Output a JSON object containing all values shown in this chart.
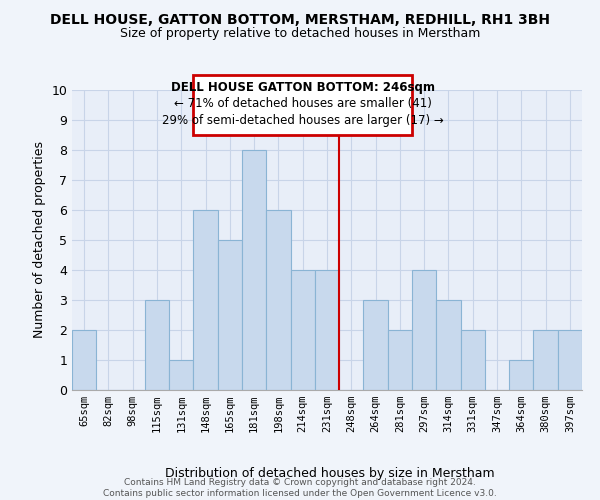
{
  "title": "DELL HOUSE, GATTON BOTTOM, MERSTHAM, REDHILL, RH1 3BH",
  "subtitle": "Size of property relative to detached houses in Merstham",
  "xlabel": "Distribution of detached houses by size in Merstham",
  "ylabel": "Number of detached properties",
  "bin_labels": [
    "65sqm",
    "82sqm",
    "98sqm",
    "115sqm",
    "131sqm",
    "148sqm",
    "165sqm",
    "181sqm",
    "198sqm",
    "214sqm",
    "231sqm",
    "248sqm",
    "264sqm",
    "281sqm",
    "297sqm",
    "314sqm",
    "331sqm",
    "347sqm",
    "364sqm",
    "380sqm",
    "397sqm"
  ],
  "bar_values": [
    2,
    0,
    0,
    3,
    1,
    6,
    5,
    8,
    6,
    4,
    4,
    0,
    3,
    2,
    4,
    3,
    2,
    0,
    1,
    2,
    2
  ],
  "bar_color": "#c8d9ed",
  "bar_edge_color": "#8ab4d4",
  "ref_line_index": 11,
  "annotation_title": "DELL HOUSE GATTON BOTTOM: 246sqm",
  "annotation_line1": "← 71% of detached houses are smaller (41)",
  "annotation_line2": "29% of semi-detached houses are larger (17) →",
  "ylim": [
    0,
    10
  ],
  "yticks": [
    0,
    1,
    2,
    3,
    4,
    5,
    6,
    7,
    8,
    9,
    10
  ],
  "footer1": "Contains HM Land Registry data © Crown copyright and database right 2024.",
  "footer2": "Contains public sector information licensed under the Open Government Licence v3.0.",
  "background_color": "#f0f4fa",
  "plot_bg_color": "#e8eef8",
  "grid_color": "#c8d4e8"
}
